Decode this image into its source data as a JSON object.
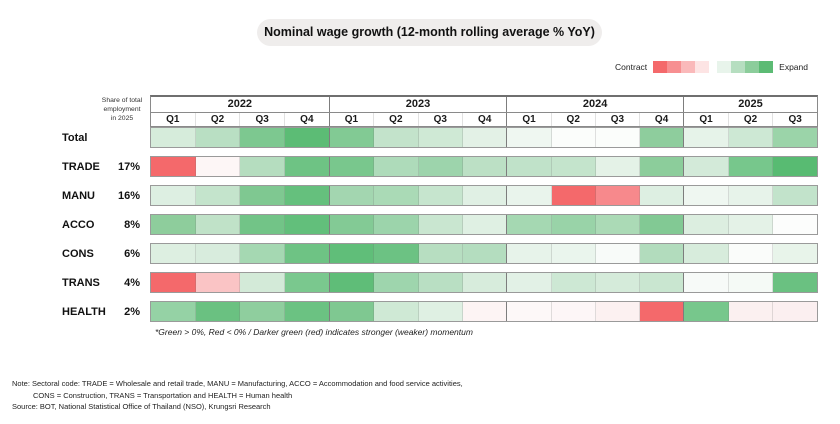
{
  "title": "Nominal wage growth (12-month rolling average % YoY)",
  "legend": {
    "contract_label": "Contract",
    "expand_label": "Expand",
    "contract_colors": [
      "#f4696b",
      "#f78f91",
      "#fab9ba",
      "#fde4e4"
    ],
    "expand_colors": [
      "#e8f4eb",
      "#b6dec0",
      "#8ccd9b",
      "#5cbb74"
    ]
  },
  "table_header": {
    "share_label": "Share of total\nemployment\nin 2025",
    "years": [
      {
        "label": "2022",
        "quarters": [
          "Q1",
          "Q2",
          "Q3",
          "Q4"
        ]
      },
      {
        "label": "2023",
        "quarters": [
          "Q1",
          "Q2",
          "Q3",
          "Q4"
        ]
      },
      {
        "label": "2024",
        "quarters": [
          "Q1",
          "Q2",
          "Q3",
          "Q4"
        ]
      },
      {
        "label": "2025",
        "quarters": [
          "Q1",
          "Q2",
          "Q3"
        ]
      }
    ]
  },
  "chart_data": {
    "type": "heatmap",
    "title": "Nominal wage growth (12-month rolling average % YoY)",
    "x_labels": [
      "2022 Q1",
      "2022 Q2",
      "2022 Q3",
      "2022 Q4",
      "2023 Q1",
      "2023 Q2",
      "2023 Q3",
      "2023 Q4",
      "2024 Q1",
      "2024 Q2",
      "2024 Q3",
      "2024 Q4",
      "2025 Q1",
      "2025 Q2",
      "2025 Q3"
    ],
    "color_scale": {
      "negative_color": "#f4696b",
      "positive_color": "#5cbb74",
      "meaning": "Green > 0% (expand), Red < 0% (contract); darker shade = stronger momentum"
    },
    "rows": [
      {
        "label": "Total",
        "share": "",
        "cell_colors": [
          "#d6ecdb",
          "#b9dfc3",
          "#7dc890",
          "#5cbc75",
          "#82ca94",
          "#c3e3cb",
          "#cfe9d5",
          "#e3f1e6",
          "#eff7f1",
          "#fbfdfb",
          "#fbfdfb",
          "#8ecd9d",
          "#e6f3e9",
          "#cde8d4",
          "#9bd4a9"
        ]
      },
      {
        "label": "TRADE",
        "share": "17%",
        "cell_colors": [
          "#f4696b",
          "#fdf6f6",
          "#b5ddbf",
          "#6ec384",
          "#79c78d",
          "#aedbba",
          "#9dd4ac",
          "#bce0c5",
          "#c0e2c9",
          "#c4e4cc",
          "#e4f2e7",
          "#8ccd9b",
          "#d3ead9",
          "#77c78c",
          "#58bb72"
        ]
      },
      {
        "label": "MANU",
        "share": "16%",
        "cell_colors": [
          "#ddefe2",
          "#c4e4cc",
          "#7fc891",
          "#65c07d",
          "#a3d6b0",
          "#aadab6",
          "#c6e5ce",
          "#e0f0e4",
          "#e9f4ec",
          "#f4696b",
          "#f7898c",
          "#ddefe2",
          "#eff7f1",
          "#e7f3ea",
          "#c2e3cb"
        ]
      },
      {
        "label": "ACCO",
        "share": "8%",
        "cell_colors": [
          "#8ecd9c",
          "#c0e2c8",
          "#72c487",
          "#62bf7b",
          "#83ca95",
          "#9cd4ab",
          "#c9e6d0",
          "#dff0e3",
          "#a5d8b2",
          "#99d3a8",
          "#abdab6",
          "#82c994",
          "#dceee0",
          "#e4f2e7",
          "#fcfdfc"
        ]
      },
      {
        "label": "CONS",
        "share": "6%",
        "cell_colors": [
          "#ddefe1",
          "#d8ecdd",
          "#a5d8b2",
          "#6ec384",
          "#60be79",
          "#6cc283",
          "#b7dec1",
          "#b4ddbf",
          "#e7f3ea",
          "#eaf5ed",
          "#f8fbf9",
          "#b2dcbd",
          "#d7ecdc",
          "#fafcfa",
          "#e8f4ea"
        ]
      },
      {
        "label": "TRANS",
        "share": "4%",
        "cell_colors": [
          "#f4696b",
          "#fac4c5",
          "#d3ead8",
          "#7ac88e",
          "#5fbd78",
          "#9ed5ad",
          "#b9dfc3",
          "#d7ecdc",
          "#e2f1e6",
          "#cde8d4",
          "#d5ebda",
          "#c9e6d0",
          "#f7faf8",
          "#f5faf6",
          "#6ac181"
        ]
      },
      {
        "label": "HEALTH",
        "share": "2%",
        "cell_colors": [
          "#95d2a5",
          "#6ac181",
          "#8fce9e",
          "#6bc282",
          "#7fc891",
          "#cfe9d5",
          "#dff0e3",
          "#fdf4f4",
          "#fdf8f8",
          "#fdf6f7",
          "#fcf1f1",
          "#f4696b",
          "#77c78c",
          "#fbf0f0",
          "#fbeff0"
        ]
      }
    ]
  },
  "footnote": "*Green > 0%, Red < 0% / Darker green (red) indicates stronger (weaker) momentum",
  "notes": {
    "line1": "Note: Sectoral code: TRADE = Wholesale and retail trade, MANU = Manufacturing, ACCO = Accommodation and food service activities,",
    "line2": "CONS = Construction, TRANS = Transportation and HEALTH = Human health",
    "source": "Source: BOT, National Statistical Office of Thailand (NSO), Krungsri Research"
  }
}
